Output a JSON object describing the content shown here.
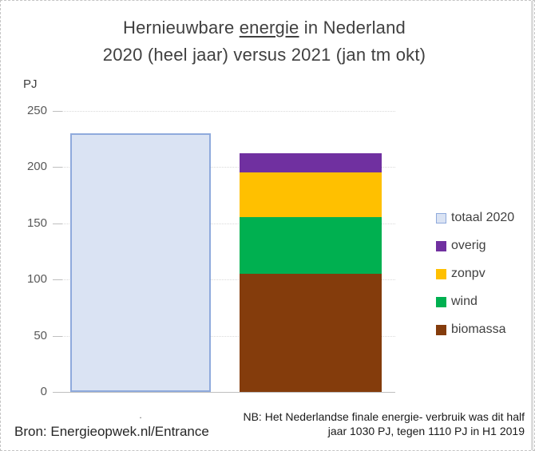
{
  "title": {
    "line1_prefix": "Hernieuwbare ",
    "line1_underlined": "energie",
    "line1_suffix": " in Nederland",
    "line2": "2020 (heel jaar) versus 2021 (jan tm okt)"
  },
  "footer": {
    "source": "Bron: Energieopwek.nl/Entrance",
    "note_line1": "NB: Het Nederlandse finale energie- verbruik was dit half",
    "note_line2": "jaar 1030 PJ, tegen 1110 PJ in H1 2019"
  },
  "colors": {
    "title_text": "#404040",
    "axis_text": "#595959",
    "gridline": "#d9d9d9",
    "axis_line": "#bfbfbf"
  },
  "chart_data": {
    "type": "bar",
    "title": "Hernieuwbare energie in Nederland 2020 (heel jaar) versus 2021 (jan tm okt)",
    "xlabel": "",
    "ylabel": "PJ",
    "ylim": [
      0,
      250
    ],
    "yticks": [
      0,
      50,
      100,
      150,
      200,
      250
    ],
    "grid": true,
    "legend_position": "right",
    "bars": [
      {
        "name": "totaal 2020",
        "kind": "single",
        "value": 230,
        "fill": "#dae3f3",
        "border": "#8faadc",
        "category_label": "."
      },
      {
        "name": "2021 (jan tm okt)",
        "kind": "stacked",
        "category_label": "",
        "segments": [
          {
            "name": "biomassa",
            "value": 105,
            "color": "#843c0c"
          },
          {
            "name": "wind",
            "value": 50,
            "color": "#00b050"
          },
          {
            "name": "zonpv",
            "value": 40,
            "color": "#ffc000"
          },
          {
            "name": "overig",
            "value": 17,
            "color": "#7030a0"
          }
        ]
      }
    ],
    "legend": [
      {
        "label": "totaal 2020",
        "fill": "#dae3f3",
        "border": "#8faadc"
      },
      {
        "label": "overig",
        "fill": "#7030a0",
        "border": "#7030a0"
      },
      {
        "label": "zonpv",
        "fill": "#ffc000",
        "border": "#ffc000"
      },
      {
        "label": "wind",
        "fill": "#00b050",
        "border": "#00b050"
      },
      {
        "label": "biomassa",
        "fill": "#843c0c",
        "border": "#843c0c"
      }
    ]
  }
}
